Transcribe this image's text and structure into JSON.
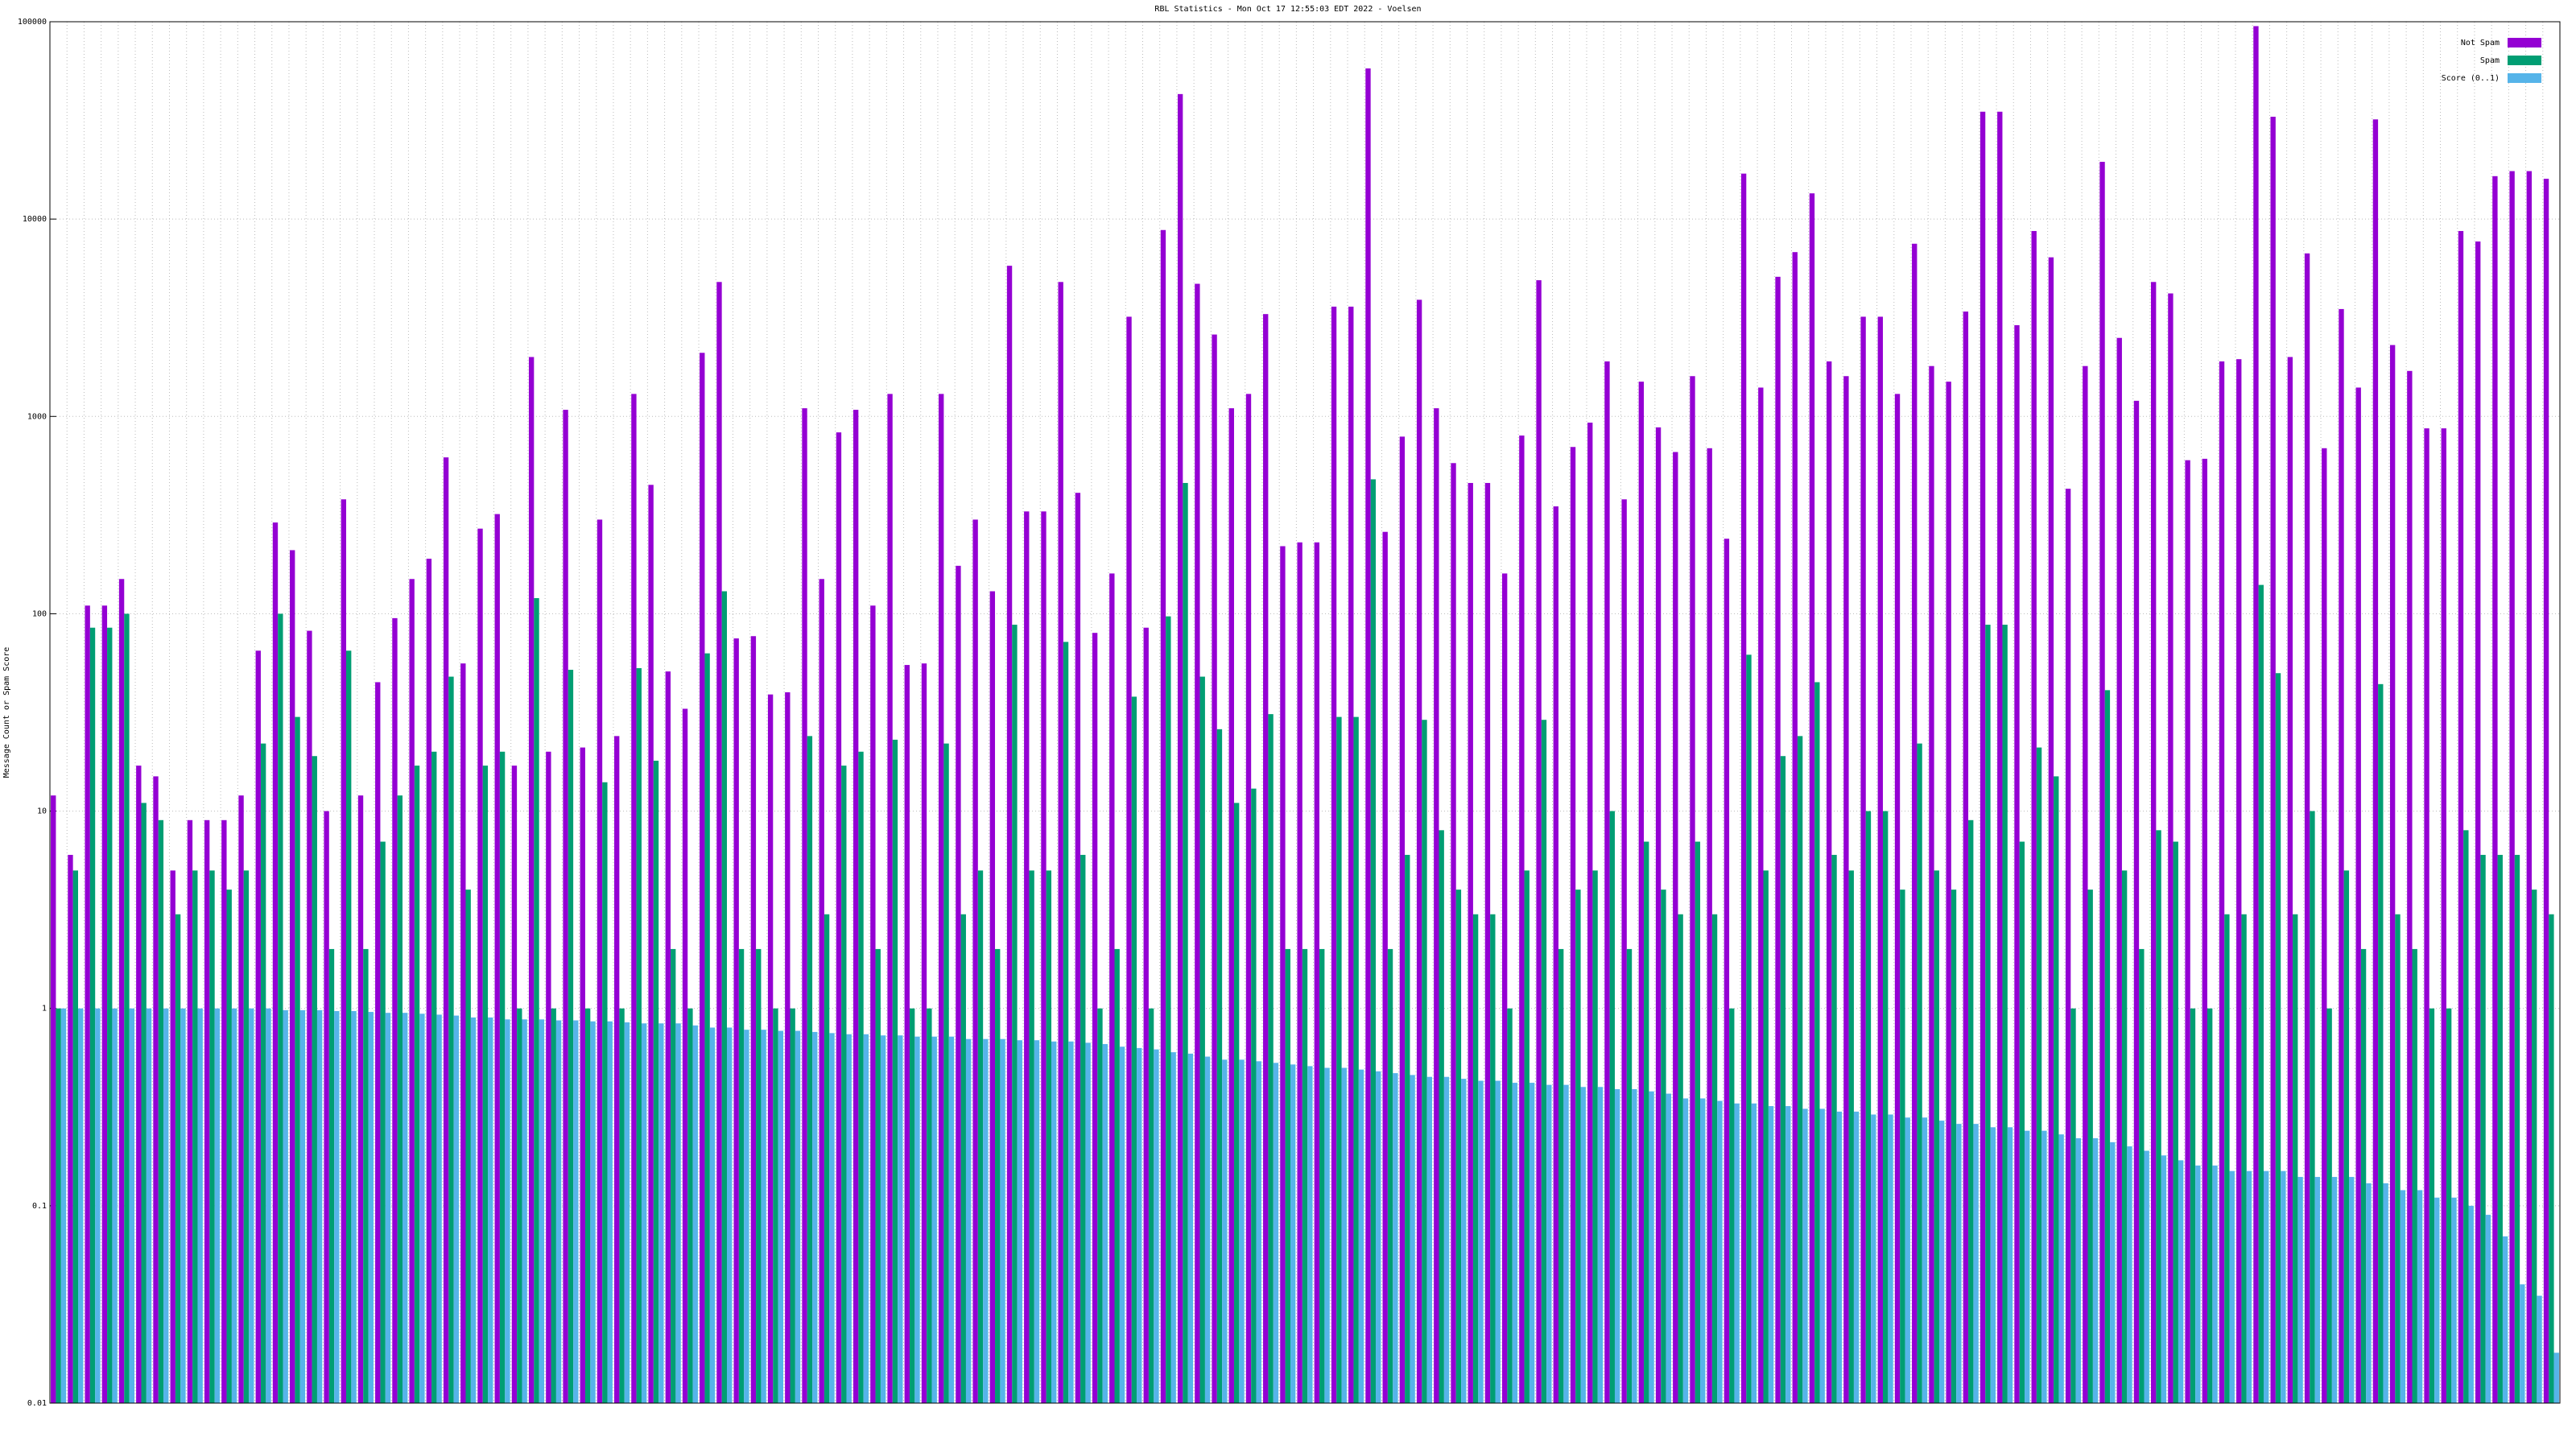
{
  "chart_data": {
    "type": "bar",
    "title": "RBL Statistics - Mon Oct 17 12:55:03 EDT 2022 - Voelsen",
    "ylabel": "Message Count or Spam Score",
    "log_scale": true,
    "grid": true,
    "legend": "top-right",
    "ylim": [
      0.01,
      100000
    ],
    "yticks": [
      0.01,
      0.1,
      1,
      10,
      100,
      1000,
      10000,
      100000
    ],
    "series": [
      {
        "name": "Not Spam",
        "color": "#9400d3",
        "values": [
          12,
          6,
          110,
          110,
          150,
          17,
          15,
          5,
          9,
          9,
          9,
          12,
          65,
          290,
          210,
          82,
          10,
          380,
          12,
          45,
          95,
          150,
          190,
          620,
          56,
          270,
          320,
          17,
          2000,
          20,
          1080,
          21,
          300,
          24,
          1300,
          450,
          51,
          33,
          2100,
          4800,
          75,
          77,
          39,
          40,
          1100,
          150,
          830,
          1080,
          110,
          1300,
          55,
          56,
          1300,
          175,
          300,
          130,
          5800,
          330,
          330,
          4800,
          410,
          80,
          160,
          3200,
          85,
          8800,
          43000,
          4700,
          2600,
          1100,
          1300,
          3300,
          220,
          230,
          230,
          3600,
          3600,
          58000,
          260,
          790,
          3900,
          1100,
          580,
          460,
          460,
          160,
          800,
          4900,
          350,
          700,
          930,
          1900,
          380,
          1500,
          880,
          660,
          1600,
          690,
          240,
          17000,
          1400,
          5100,
          6800,
          13500,
          1900,
          1600,
          3200,
          3200,
          1300,
          7500,
          1800,
          1500,
          3400,
          35000,
          35000,
          2900,
          8700,
          6400,
          430,
          1800,
          19500,
          2500,
          1200,
          4800,
          4200,
          600,
          610,
          1900,
          1950,
          95000,
          33000,
          2000,
          6700,
          690,
          3500,
          1400,
          32000,
          2300,
          1700,
          870,
          870,
          8700,
          7700,
          16500,
          17500,
          17500,
          16000
        ]
      },
      {
        "name": "Spam",
        "color": "#009e73",
        "values": [
          1,
          5,
          85,
          85,
          100,
          11,
          9,
          3,
          5,
          5,
          4,
          5,
          22,
          100,
          30,
          19,
          2,
          65,
          2,
          7,
          12,
          17,
          20,
          48,
          4,
          17,
          20,
          1,
          120,
          1,
          52,
          1,
          14,
          1,
          53,
          18,
          2,
          1,
          63,
          130,
          2,
          2,
          1,
          1,
          24,
          3,
          17,
          20,
          2,
          23,
          1,
          1,
          22,
          3,
          5,
          2,
          88,
          5,
          5,
          72,
          6,
          1,
          2,
          38,
          1,
          97,
          460,
          48,
          26,
          11,
          13,
          31,
          2,
          2,
          2,
          30,
          30,
          480,
          2,
          6,
          29,
          8,
          4,
          3,
          3,
          1,
          5,
          29,
          2,
          4,
          5,
          10,
          2,
          7,
          4,
          3,
          7,
          3,
          1,
          62,
          5,
          19,
          24,
          45,
          6,
          5,
          10,
          10,
          4,
          22,
          5,
          4,
          9,
          88,
          88,
          7,
          21,
          15,
          1,
          4,
          41,
          5,
          2,
          8,
          7,
          1,
          1,
          3,
          3,
          140,
          50,
          3,
          10,
          1,
          5,
          2,
          44,
          3,
          2,
          1,
          1,
          8,
          6,
          6,
          6,
          4,
          3
        ]
      },
      {
        "name": "Score (0..1)",
        "color": "#56b4e9",
        "values": [
          1,
          1,
          1,
          1,
          1,
          1,
          1,
          1,
          1,
          1,
          1,
          1,
          1,
          0.98,
          0.98,
          0.98,
          0.97,
          0.97,
          0.96,
          0.95,
          0.95,
          0.94,
          0.93,
          0.92,
          0.9,
          0.9,
          0.88,
          0.88,
          0.88,
          0.87,
          0.87,
          0.86,
          0.86,
          0.85,
          0.84,
          0.84,
          0.84,
          0.82,
          0.8,
          0.8,
          0.78,
          0.78,
          0.77,
          0.77,
          0.76,
          0.75,
          0.74,
          0.74,
          0.73,
          0.73,
          0.72,
          0.72,
          0.72,
          0.7,
          0.7,
          0.7,
          0.69,
          0.69,
          0.68,
          0.68,
          0.67,
          0.66,
          0.64,
          0.63,
          0.62,
          0.6,
          0.59,
          0.57,
          0.55,
          0.55,
          0.54,
          0.53,
          0.52,
          0.51,
          0.5,
          0.5,
          0.49,
          0.48,
          0.47,
          0.46,
          0.45,
          0.45,
          0.44,
          0.43,
          0.43,
          0.42,
          0.42,
          0.41,
          0.41,
          0.4,
          0.4,
          0.39,
          0.39,
          0.38,
          0.37,
          0.35,
          0.35,
          0.34,
          0.33,
          0.33,
          0.32,
          0.32,
          0.31,
          0.31,
          0.3,
          0.3,
          0.29,
          0.29,
          0.28,
          0.28,
          0.27,
          0.26,
          0.26,
          0.25,
          0.25,
          0.24,
          0.24,
          0.23,
          0.22,
          0.22,
          0.21,
          0.2,
          0.19,
          0.18,
          0.17,
          0.16,
          0.16,
          0.15,
          0.15,
          0.15,
          0.15,
          0.14,
          0.14,
          0.14,
          0.14,
          0.13,
          0.13,
          0.12,
          0.12,
          0.11,
          0.11,
          0.1,
          0.09,
          0.07,
          0.04,
          0.035,
          0.018
        ]
      }
    ]
  }
}
